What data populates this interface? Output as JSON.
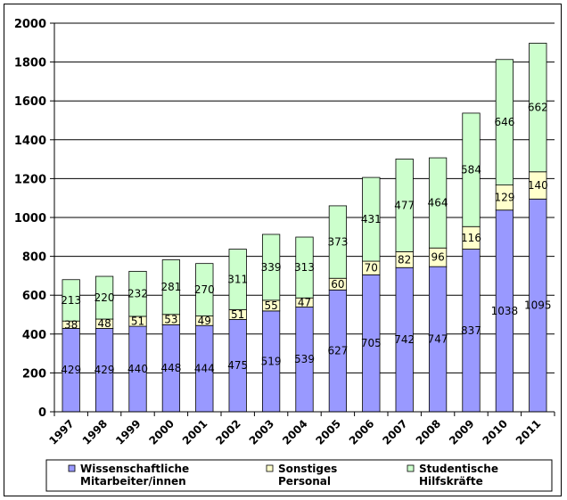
{
  "chart_data": {
    "type": "bar",
    "stacked": true,
    "title": "",
    "xlabel": "",
    "ylabel": "",
    "ylim": [
      0,
      2000
    ],
    "yticks": [
      0,
      200,
      400,
      600,
      800,
      1000,
      1200,
      1400,
      1600,
      1800,
      2000
    ],
    "grid": true,
    "legend_position": "bottom",
    "categories": [
      "1997",
      "1998",
      "1999",
      "2000",
      "2001",
      "2002",
      "2003",
      "2004",
      "2005",
      "2006",
      "2007",
      "2008",
      "2009",
      "2010",
      "2011"
    ],
    "series": [
      {
        "name": "Wissenschaftliche Mitarbeiter/innen",
        "legend_lines": [
          "Wissenschaftliche",
          "Mitarbeiter/innen"
        ],
        "color": "#9999ff",
        "values": [
          429,
          429,
          440,
          448,
          444,
          475,
          519,
          539,
          627,
          705,
          742,
          747,
          837,
          1038,
          1095
        ]
      },
      {
        "name": "Sonstiges Personal",
        "legend_lines": [
          "Sonstiges",
          "Personal"
        ],
        "color": "#ffffcc",
        "values": [
          38,
          48,
          51,
          53,
          49,
          51,
          55,
          47,
          60,
          70,
          82,
          96,
          116,
          129,
          140
        ]
      },
      {
        "name": "Studentische Hilfskräfte",
        "legend_lines": [
          "Studentische",
          "Hilfskräfte"
        ],
        "color": "#ccffcc",
        "values": [
          213,
          220,
          232,
          281,
          270,
          311,
          339,
          313,
          373,
          431,
          477,
          464,
          584,
          646,
          662
        ]
      }
    ]
  }
}
